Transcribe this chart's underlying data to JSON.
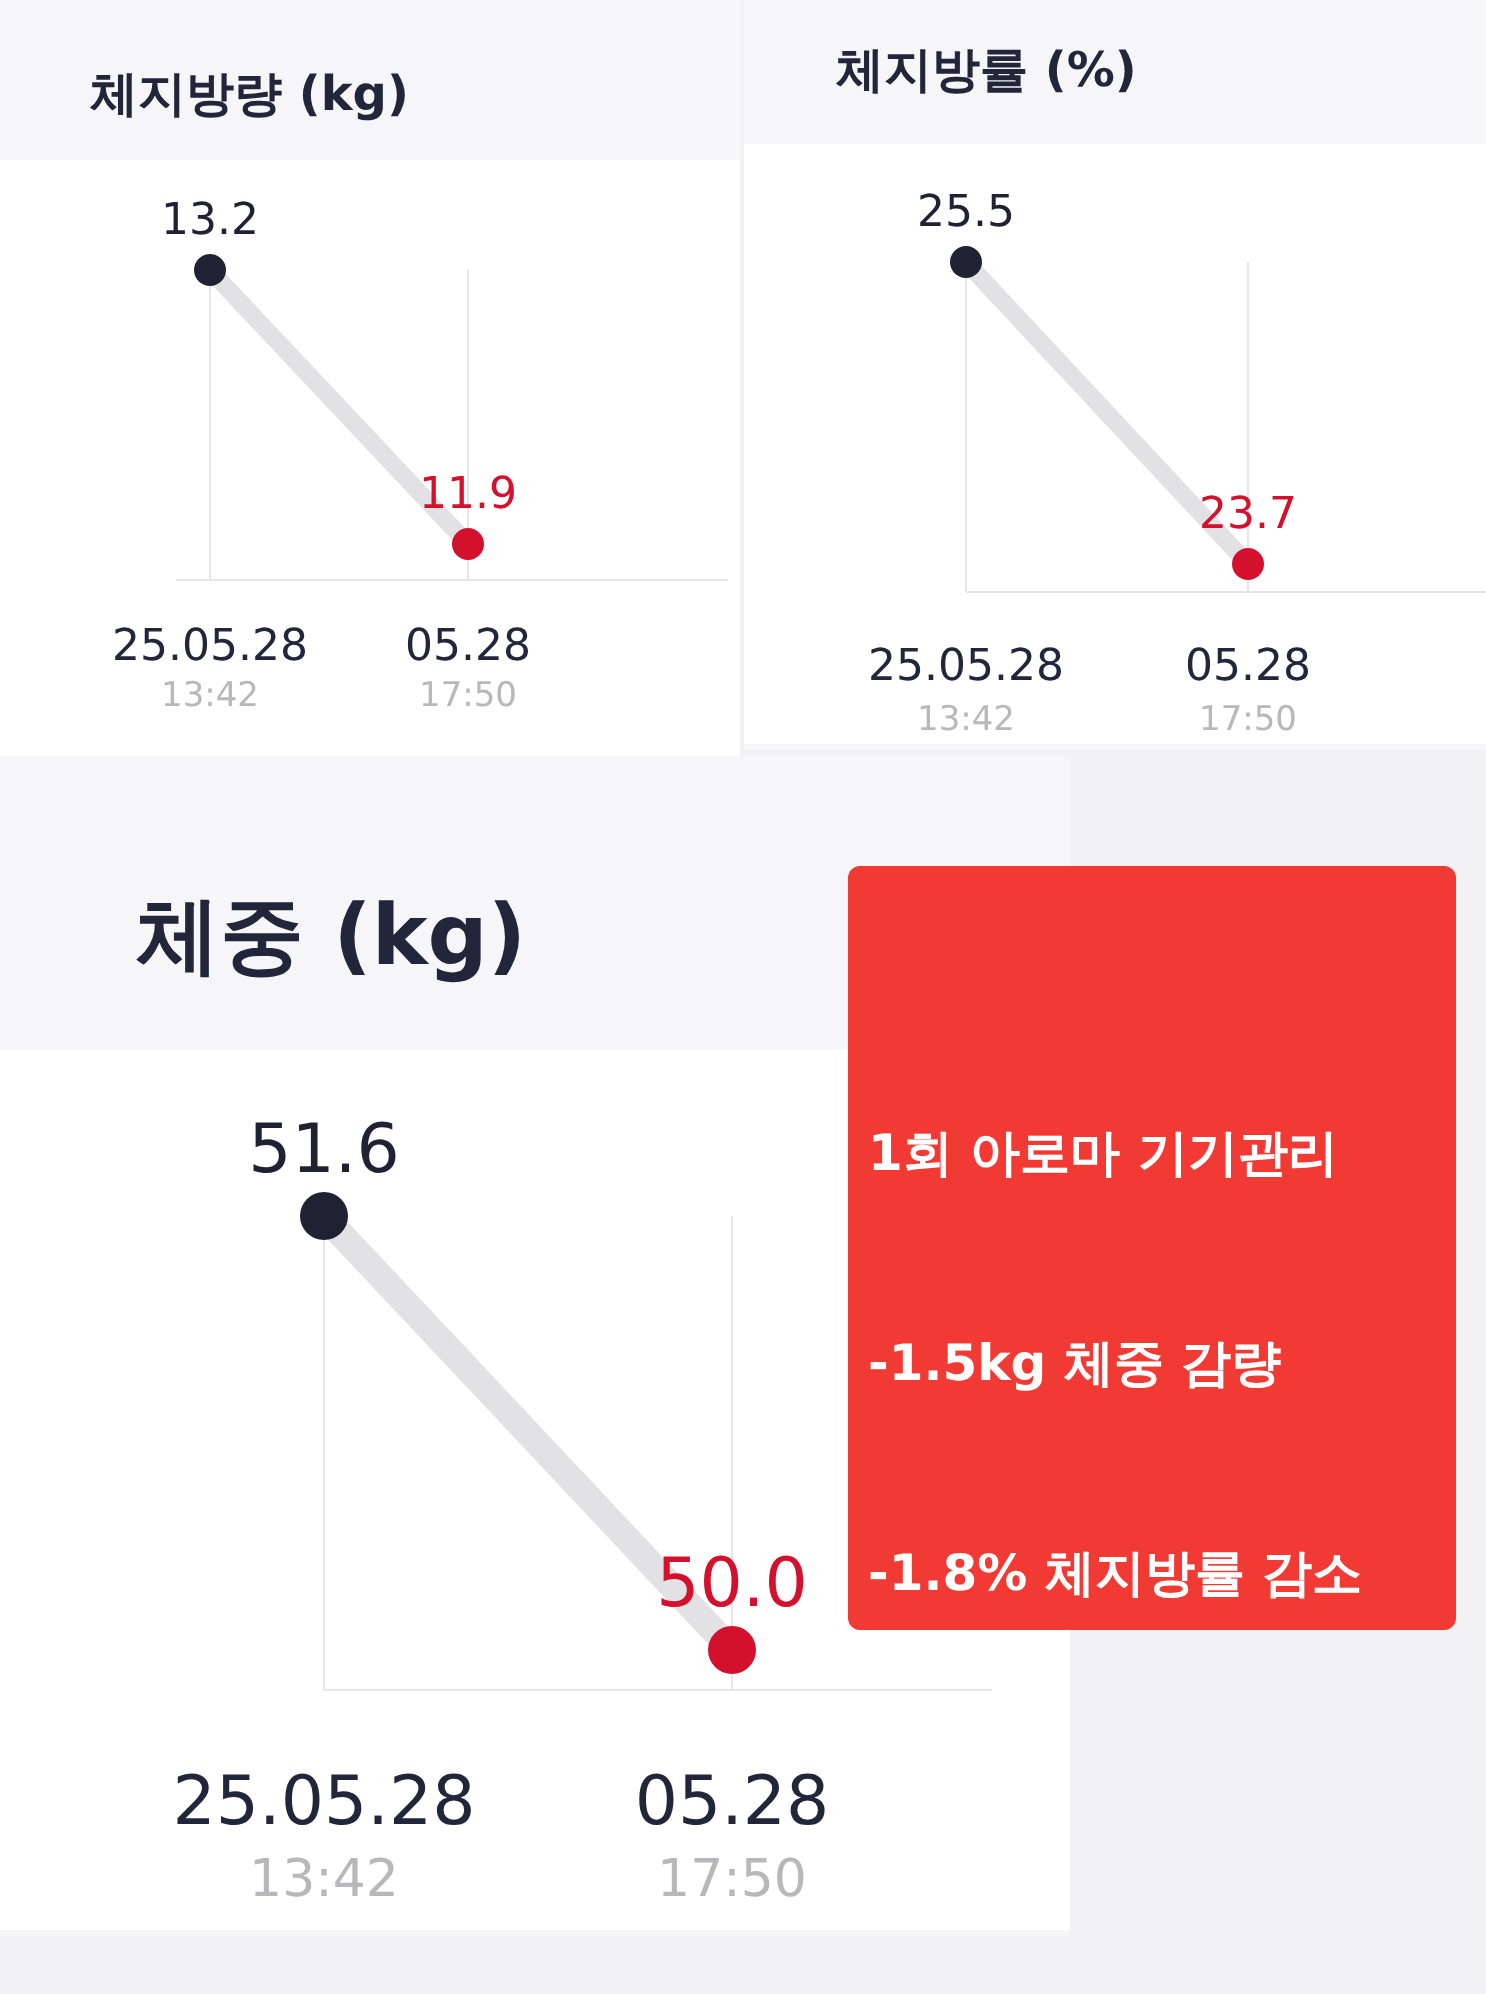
{
  "chart_data": [
    {
      "type": "line",
      "title": "체지방량 (kg)",
      "categories": [
        "25.05.28\n13:42",
        "05.28\n17:50"
      ],
      "grid": "x",
      "series": [
        {
          "color": "#e2e2e4",
          "colors": [
            "#1e2233",
            "#d4112c"
          ],
          "marker": "circle",
          "values": [
            13.2,
            11.9
          ],
          "value_labels": [
            "13.2",
            "11.9"
          ]
        }
      ]
    },
    {
      "type": "line",
      "title": "체지방률 (%)",
      "categories": [
        "25.05.28\n13:42",
        "05.28\n17:50"
      ],
      "grid": "x",
      "series": [
        {
          "color": "#e2e2e4",
          "colors": [
            "#1e2233",
            "#d4112c"
          ],
          "marker": "circle",
          "values": [
            25.5,
            23.7
          ],
          "value_labels": [
            "25.5",
            "23.7"
          ]
        }
      ]
    },
    {
      "type": "line",
      "title": "체중 (kg)",
      "categories": [
        "25.05.28\n13:42",
        "05.28\n17:50"
      ],
      "grid": "x",
      "series": [
        {
          "color": "#e2e2e4",
          "colors": [
            "#1e2233",
            "#d4112c"
          ],
          "marker": "circle",
          "values": [
            51.6,
            50.0
          ],
          "value_labels": [
            "51.6",
            "50.0"
          ]
        }
      ]
    },
    {
      "type": "other",
      "color": "#f23a35",
      "annotations": [
        "1회 아로마 기기관리",
        "-1.5kg 체중 감량",
        "-1.8% 체지방률 감소"
      ]
    }
  ]
}
